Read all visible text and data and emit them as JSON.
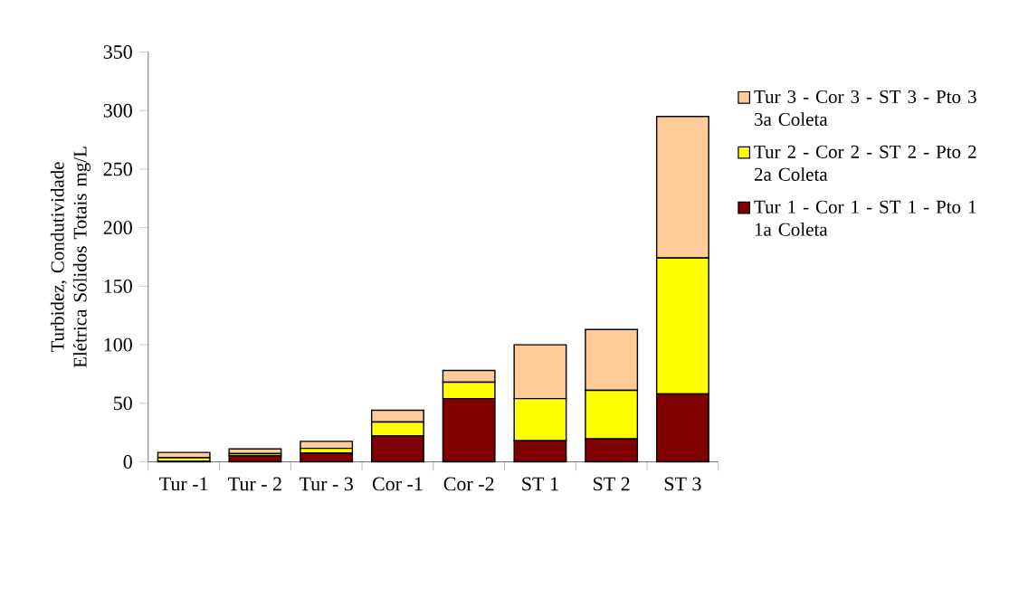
{
  "chart_data": {
    "type": "bar",
    "stacked": true,
    "ylabel": "Turbidez, Condutividade Elétrica Sólidos Totais mg/L",
    "categories": [
      "Tur -1",
      "Tur - 2",
      "Tur - 3",
      "Cor -1",
      "Cor -2",
      "ST 1",
      "ST 2",
      "ST 3"
    ],
    "series": [
      {
        "name": "Tur 1 - Cor 1 - ST 1 - Pto 1 1a Coleta",
        "color": "#800000",
        "values": [
          0.5,
          5,
          7.5,
          22,
          54,
          18,
          19.5,
          58
        ]
      },
      {
        "name": "Tur 2 - Cor 2 - ST 2 - Pto 2 2a Coleta",
        "color": "#ffff00",
        "values": [
          3,
          2,
          4,
          12,
          14,
          36,
          41.5,
          116
        ]
      },
      {
        "name": "Tur 3 - Cor 3 - ST 3 - Pto 3 3a Coleta",
        "color": "#ffcc99",
        "values": [
          4.5,
          4,
          6,
          10,
          10,
          46,
          52,
          121
        ]
      }
    ],
    "ylim": [
      0,
      350
    ],
    "yticks": [
      0,
      50,
      100,
      150,
      200,
      250,
      300,
      350
    ],
    "grid": false,
    "legend": "right"
  }
}
